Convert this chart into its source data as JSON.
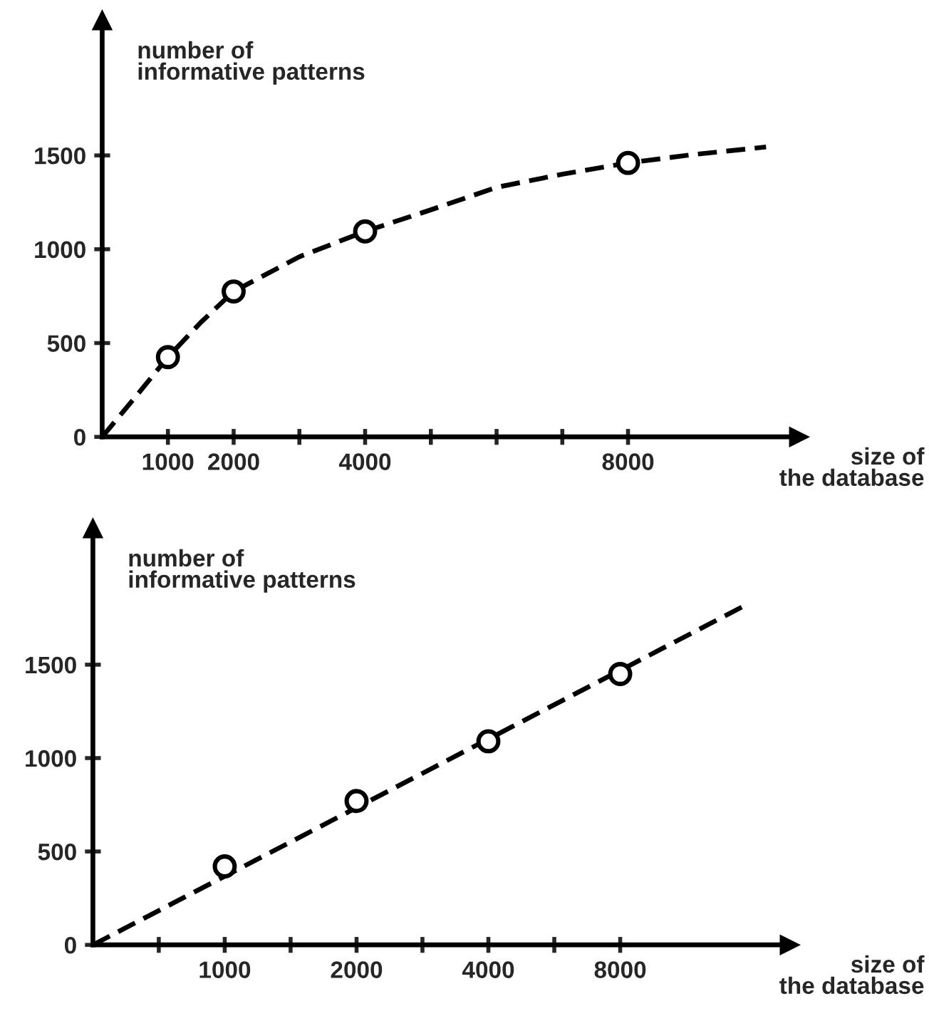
{
  "chart_data": [
    {
      "type": "line",
      "xlabel": "size of\nthe database",
      "ylabel": "number of\ninformative patterns",
      "xlim": [
        0,
        10600
      ],
      "ylim": [
        0,
        2220
      ],
      "xticks": [
        {
          "value": 1000,
          "label": "1000"
        },
        {
          "value": 2000,
          "label": "2000"
        },
        {
          "value": 3000,
          "label": null
        },
        {
          "value": 4000,
          "label": "4000"
        },
        {
          "value": 5000,
          "label": null
        },
        {
          "value": 6000,
          "label": null
        },
        {
          "value": 7000,
          "label": null
        },
        {
          "value": 8000,
          "label": "8000"
        }
      ],
      "yticks": [
        0,
        500,
        1000,
        1500
      ],
      "grid": false,
      "legend": false,
      "series": [
        {
          "color": "#000000",
          "line_style": "dashed",
          "marker": "none",
          "x": [
            0,
            500,
            1000,
            1500,
            2000,
            3000,
            4000,
            5000,
            6000,
            7000,
            8000,
            9000,
            10100
          ],
          "values": [
            0,
            210,
            425,
            610,
            775,
            960,
            1095,
            1210,
            1330,
            1400,
            1460,
            1505,
            1545
          ]
        },
        {
          "type": "scatter",
          "color": "#000000",
          "marker": "circle",
          "x": [
            1000,
            2000,
            4000,
            8000
          ],
          "values": [
            425,
            775,
            1095,
            1460
          ]
        }
      ]
    },
    {
      "type": "line",
      "xlabel": "size of\nthe database",
      "ylabel": "number of\ninformative patterns",
      "log": "x",
      "xlim": [
        500,
        19500
      ],
      "ylim": [
        0,
        2230
      ],
      "xticks": [
        {
          "value": 707,
          "label": null
        },
        {
          "value": 1000,
          "label": "1000"
        },
        {
          "value": 1414,
          "label": null
        },
        {
          "value": 2000,
          "label": "2000"
        },
        {
          "value": 2828,
          "label": null
        },
        {
          "value": 4000,
          "label": "4000"
        },
        {
          "value": 5657,
          "label": null
        },
        {
          "value": 8000,
          "label": "8000"
        }
      ],
      "yticks": [
        0,
        500,
        1000,
        1500
      ],
      "grid": false,
      "legend": false,
      "series": [
        {
          "color": "#000000",
          "line_style": "dashed",
          "marker": "none",
          "x": [
            500,
            15500
          ],
          "values": [
            0,
            1820
          ]
        },
        {
          "type": "scatter",
          "color": "#000000",
          "marker": "circle",
          "x": [
            1000,
            2000,
            4000,
            8000
          ],
          "values": [
            420,
            770,
            1090,
            1450
          ]
        }
      ]
    }
  ]
}
